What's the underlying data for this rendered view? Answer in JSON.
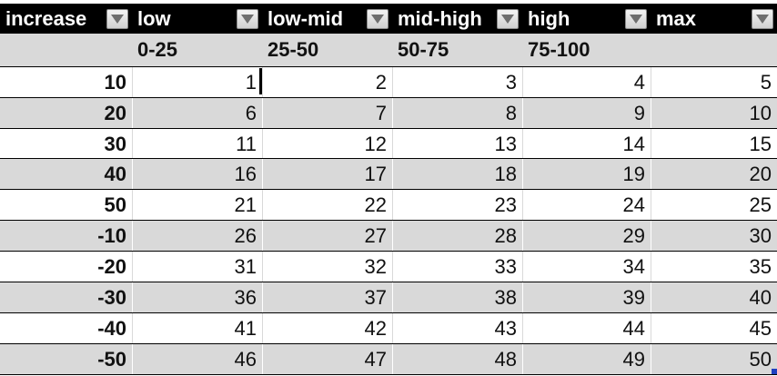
{
  "header": [
    {
      "label": "increase"
    },
    {
      "label": "low"
    },
    {
      "label": "low-mid"
    },
    {
      "label": "mid-high"
    },
    {
      "label": "high"
    },
    {
      "label": "max"
    }
  ],
  "ranges": [
    "",
    "0-25",
    "25-50",
    "50-75",
    "75-100",
    ""
  ],
  "rows": [
    {
      "increase": "10",
      "values": [
        "1",
        "2",
        "3",
        "4",
        "5"
      ]
    },
    {
      "increase": "20",
      "values": [
        "6",
        "7",
        "8",
        "9",
        "10"
      ]
    },
    {
      "increase": "30",
      "values": [
        "11",
        "12",
        "13",
        "14",
        "15"
      ]
    },
    {
      "increase": "40",
      "values": [
        "16",
        "17",
        "18",
        "19",
        "20"
      ]
    },
    {
      "increase": "50",
      "values": [
        "21",
        "22",
        "23",
        "24",
        "25"
      ]
    },
    {
      "increase": "-10",
      "values": [
        "26",
        "27",
        "28",
        "29",
        "30"
      ]
    },
    {
      "increase": "-20",
      "values": [
        "31",
        "32",
        "33",
        "34",
        "35"
      ]
    },
    {
      "increase": "-30",
      "values": [
        "36",
        "37",
        "38",
        "39",
        "40"
      ]
    },
    {
      "increase": "-40",
      "values": [
        "41",
        "42",
        "43",
        "44",
        "45"
      ]
    },
    {
      "increase": "-50",
      "values": [
        "46",
        "47",
        "48",
        "49",
        "50"
      ]
    }
  ],
  "colors": {
    "header_bg": "#000000",
    "header_text": "#ffffff",
    "band": "#d9d9d9",
    "white": "#ffffff",
    "selection_handle": "#1f3fbf"
  },
  "icons": {
    "filter": "filter-dropdown-arrow-icon"
  }
}
